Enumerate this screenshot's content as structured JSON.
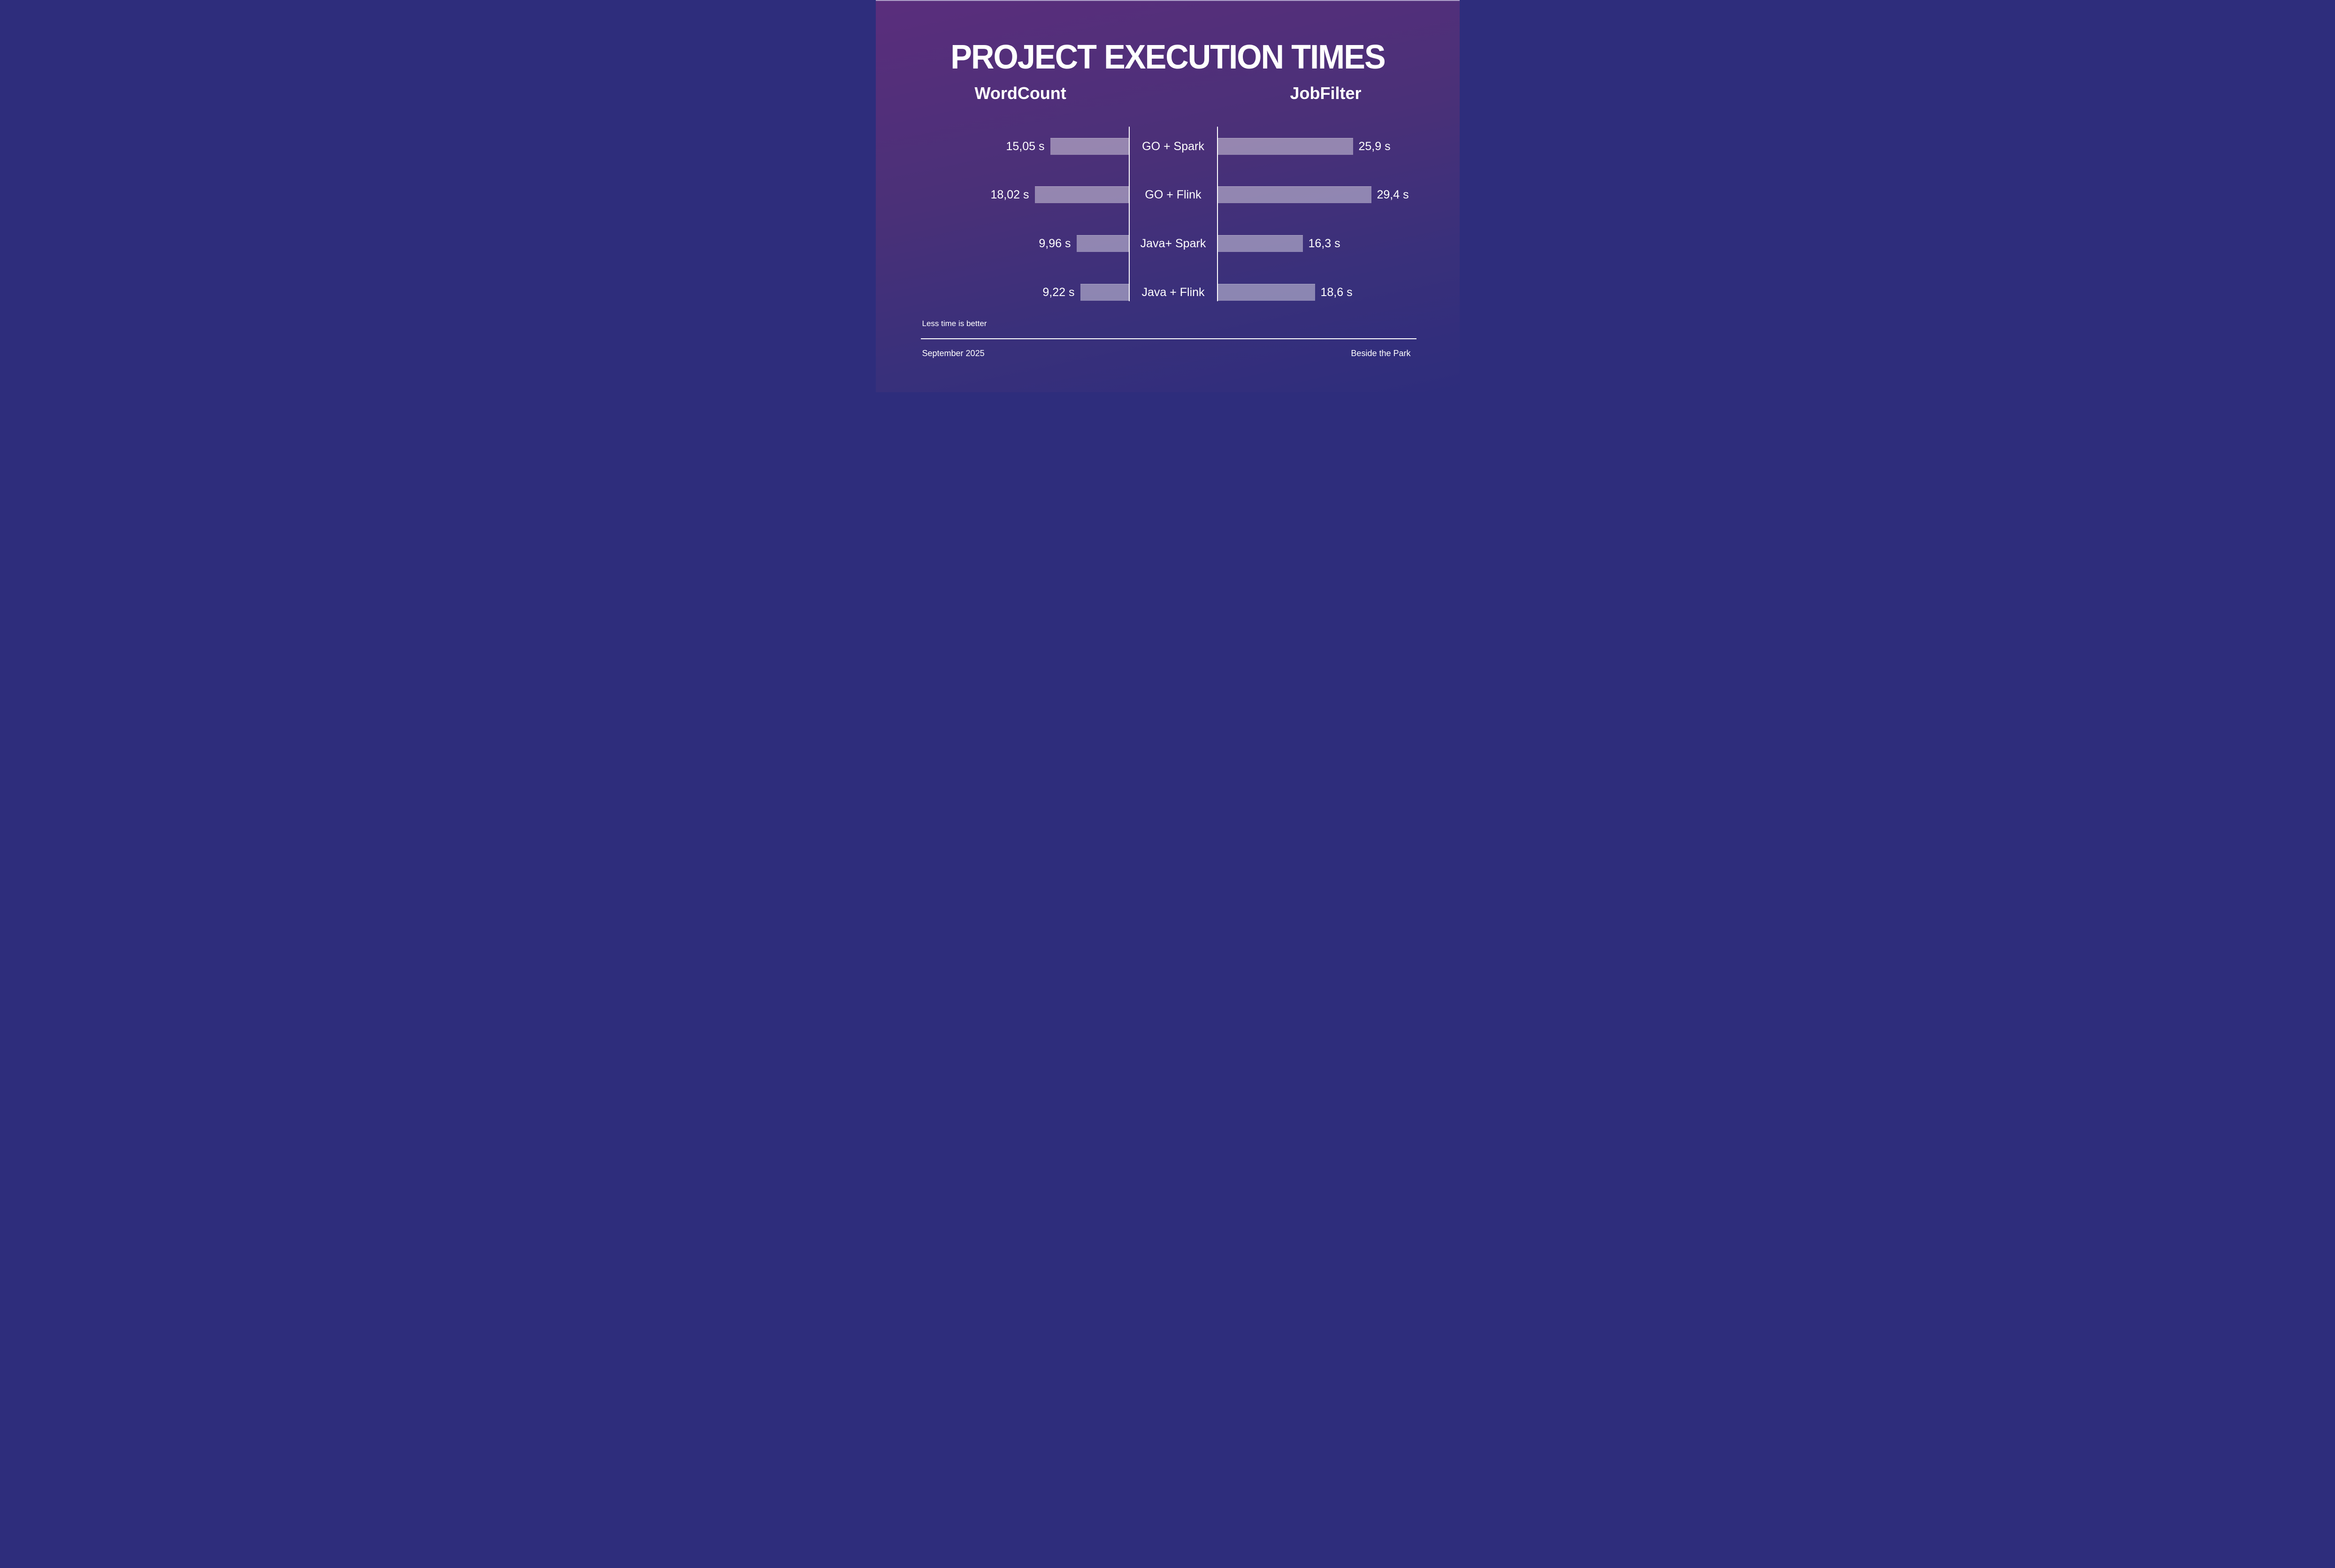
{
  "title": "PROJECT EXECUTION TIMES",
  "note": "Less time is better",
  "footer": {
    "left": "September 2025",
    "right": "Beside the Park"
  },
  "colors": {
    "background_top": "#5a2e7c",
    "background_bottom": "#2e2d7c",
    "bar_fill_apparent": "#9289b5",
    "text": "#ffffff"
  },
  "chart_data": {
    "type": "bar",
    "orientation": "horizontal-mirrored",
    "title": "PROJECT EXECUTION TIMES",
    "unit": "s",
    "note": "Less time is better",
    "legend_position": "column-headers-above",
    "grid": false,
    "xlim": [
      0,
      30
    ],
    "categories": [
      "GO + Spark",
      "GO + Flink",
      "Java+ Spark",
      "Java + Flink"
    ],
    "series": [
      {
        "name": "WordCount",
        "direction": "left",
        "values": [
          15.05,
          18.02,
          9.96,
          9.22
        ],
        "labels": [
          "15,05 s",
          "18,02 s",
          "9,96 s",
          "9,22 s"
        ]
      },
      {
        "name": "JobFilter",
        "direction": "right",
        "values": [
          25.9,
          29.4,
          16.3,
          18.6
        ],
        "labels": [
          "25,9 s",
          "29,4 s",
          "16,3 s",
          "18,6 s"
        ]
      }
    ]
  }
}
